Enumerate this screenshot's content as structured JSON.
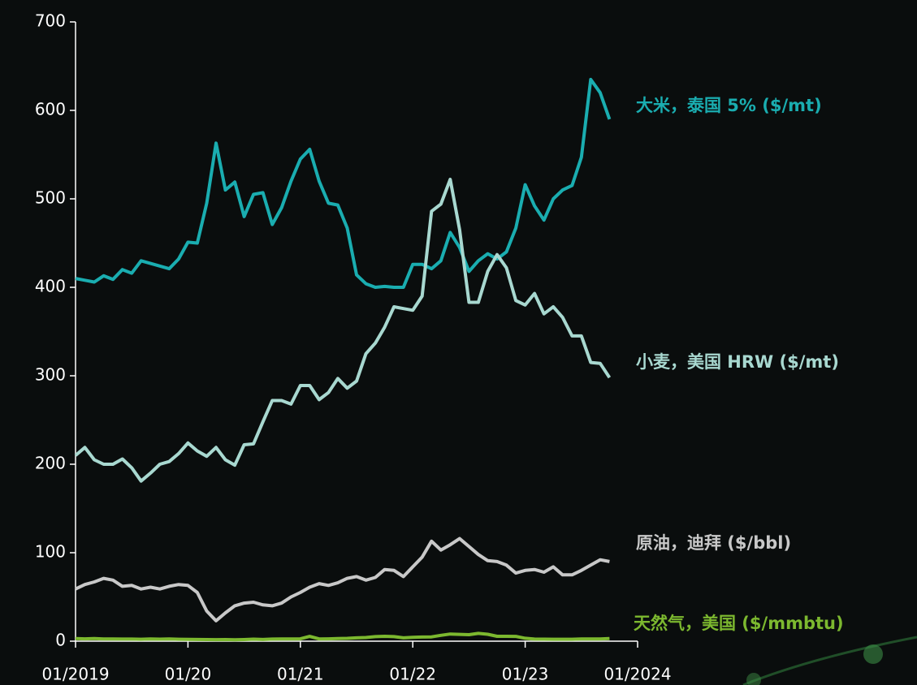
{
  "chart_data": {
    "type": "line",
    "x": [
      "2019-01",
      "2019-02",
      "2019-03",
      "2019-04",
      "2019-05",
      "2019-06",
      "2019-07",
      "2019-08",
      "2019-09",
      "2019-10",
      "2019-11",
      "2019-12",
      "2020-01",
      "2020-02",
      "2020-03",
      "2020-04",
      "2020-05",
      "2020-06",
      "2020-07",
      "2020-08",
      "2020-09",
      "2020-10",
      "2020-11",
      "2020-12",
      "2021-01",
      "2021-02",
      "2021-03",
      "2021-04",
      "2021-05",
      "2021-06",
      "2021-07",
      "2021-08",
      "2021-09",
      "2021-10",
      "2021-11",
      "2021-12",
      "2022-01",
      "2022-02",
      "2022-03",
      "2022-04",
      "2022-05",
      "2022-06",
      "2022-07",
      "2022-08",
      "2022-09",
      "2022-10",
      "2022-11",
      "2022-12",
      "2023-01",
      "2023-02",
      "2023-03",
      "2023-04",
      "2023-05",
      "2023-06",
      "2023-07",
      "2023-08",
      "2023-09",
      "2023-10"
    ],
    "xlim": [
      "2019-01",
      "2024-01"
    ],
    "xticks": [
      {
        "value": "2019-01",
        "label": "01/2019"
      },
      {
        "value": "2020-01",
        "label": "01/20"
      },
      {
        "value": "2021-01",
        "label": "01/21"
      },
      {
        "value": "2022-01",
        "label": "01/22"
      },
      {
        "value": "2023-01",
        "label": "01/23"
      },
      {
        "value": "2024-01",
        "label": "01/2024"
      }
    ],
    "ylim": [
      0,
      700
    ],
    "yticks": [
      0,
      100,
      200,
      300,
      400,
      500,
      600,
      700
    ],
    "series": [
      {
        "name": "大米，泰国 5% ($/mt)",
        "color": "#1aadb0",
        "values": [
          410,
          408,
          406,
          413,
          409,
          420,
          416,
          430,
          427,
          424,
          421,
          432,
          451,
          450,
          495,
          563,
          510,
          519,
          480,
          505,
          507,
          471,
          490,
          520,
          545,
          556,
          520,
          495,
          493,
          467,
          414,
          404,
          400,
          401,
          400,
          400,
          426,
          426,
          421,
          430,
          462,
          445,
          418,
          430,
          438,
          432,
          440,
          467,
          516,
          492,
          476,
          500,
          510,
          515,
          547,
          635,
          620,
          590
        ]
      },
      {
        "name": "小麦，美国 HRW ($/mt)",
        "color": "#a8d8d0",
        "values": [
          210,
          219,
          205,
          200,
          200,
          206,
          196,
          181,
          190,
          200,
          203,
          212,
          224,
          215,
          209,
          219,
          205,
          199,
          222,
          223,
          248,
          272,
          272,
          268,
          289,
          289,
          273,
          281,
          297,
          286,
          294,
          325,
          337,
          355,
          378,
          376,
          374,
          390,
          486,
          494,
          522,
          465,
          383,
          383,
          418,
          437,
          422,
          385,
          380,
          393,
          370,
          378,
          366,
          345,
          345,
          315,
          314,
          298
        ]
      },
      {
        "name": "原油，迪拜 ($/bbl)",
        "color": "#c8c8c8",
        "values": [
          59,
          64,
          67,
          71,
          69,
          62,
          63,
          59,
          61,
          59,
          62,
          64,
          63,
          55,
          34,
          23,
          32,
          40,
          43,
          44,
          41,
          40,
          43,
          50,
          55,
          61,
          65,
          63,
          66,
          71,
          73,
          69,
          72,
          81,
          80,
          73,
          84,
          95,
          113,
          103,
          109,
          116,
          107,
          98,
          91,
          90,
          86,
          77,
          80,
          81,
          78,
          84,
          75,
          75,
          80,
          86,
          92,
          90
        ]
      },
      {
        "name": "天然气，美国 ($/mmbtu)",
        "color": "#7cb82f",
        "values": [
          3,
          2.7,
          2.9,
          2.6,
          2.6,
          2.4,
          2.4,
          2.2,
          2.6,
          2.3,
          2.6,
          2.2,
          2,
          1.9,
          1.8,
          1.7,
          1.8,
          1.6,
          1.8,
          2.3,
          1.9,
          2.4,
          2.6,
          2.5,
          2.7,
          5.4,
          2.6,
          2.7,
          2.9,
          3.2,
          3.8,
          4.1,
          5.1,
          5.5,
          5.1,
          3.8,
          4.3,
          4.7,
          4.9,
          6.6,
          8.1,
          7.7,
          7.3,
          8.8,
          7.8,
          5.5,
          5.5,
          5.4,
          3.3,
          2.4,
          2.3,
          2.2,
          2.2,
          2.2,
          2.5,
          2.6,
          2.6,
          3.0
        ]
      }
    ]
  }
}
